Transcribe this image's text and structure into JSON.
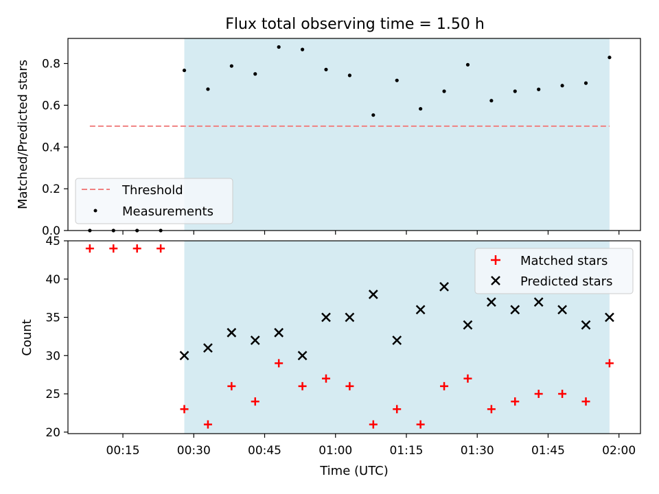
{
  "chart_data": [
    {
      "type": "scatter",
      "title": "Flux total observing time = 1.50 h",
      "xlabel": "",
      "ylabel": "Matched/Predicted stars",
      "ylim": [
        0,
        0.92
      ],
      "yticks": [
        "0.0",
        "0.2",
        "0.4",
        "0.6",
        "0.8"
      ],
      "x_axis_type": "time",
      "x_tick_labels_shown": false,
      "shaded_interval": {
        "start": "00:28",
        "end": "01:58",
        "color": "#add8e6"
      },
      "threshold": {
        "name": "Threshold",
        "value": 0.5,
        "x_start": "00:08",
        "x_end": "01:58",
        "color": "#f08080",
        "style": "dashed"
      },
      "series": [
        {
          "name": "Measurements",
          "color": "#000000",
          "marker": "dot",
          "x": [
            "00:08",
            "00:13",
            "00:18",
            "00:23",
            "00:28",
            "00:33",
            "00:38",
            "00:43",
            "00:48",
            "00:53",
            "00:58",
            "01:03",
            "01:08",
            "01:13",
            "01:18",
            "01:23",
            "01:28",
            "01:33",
            "01:38",
            "01:43",
            "01:48",
            "01:53",
            "01:58"
          ],
          "y": [
            0.0,
            0.0,
            0.0,
            0.0,
            0.767,
            0.677,
            0.788,
            0.75,
            0.879,
            0.867,
            0.771,
            0.743,
            0.553,
            0.719,
            0.583,
            0.667,
            0.794,
            0.622,
            0.667,
            0.676,
            0.694,
            0.706,
            0.829
          ]
        }
      ],
      "legend": {
        "position": "lower-left",
        "entries": [
          "Threshold",
          "Measurements"
        ]
      }
    },
    {
      "type": "scatter",
      "title": "",
      "xlabel": "Time (UTC)",
      "ylabel": "Count",
      "ylim": [
        19.8,
        45
      ],
      "yticks": [
        "20",
        "25",
        "30",
        "35",
        "40",
        "45"
      ],
      "x_axis_type": "time",
      "xticks": [
        "00:15",
        "00:30",
        "00:45",
        "01:00",
        "01:15",
        "01:30",
        "01:45",
        "02:00"
      ],
      "shaded_interval": {
        "start": "00:28",
        "end": "01:58",
        "color": "#add8e6"
      },
      "series": [
        {
          "name": "Matched stars",
          "color": "#ff0000",
          "marker": "plus",
          "x": [
            "00:08",
            "00:13",
            "00:18",
            "00:23",
            "00:28",
            "00:33",
            "00:38",
            "00:43",
            "00:48",
            "00:53",
            "00:58",
            "01:03",
            "01:08",
            "01:13",
            "01:18",
            "01:23",
            "01:28",
            "01:33",
            "01:38",
            "01:43",
            "01:48",
            "01:53",
            "01:58"
          ],
          "y": [
            44,
            44,
            44,
            44,
            23,
            21,
            26,
            24,
            29,
            26,
            27,
            26,
            21,
            23,
            21,
            26,
            27,
            23,
            24,
            25,
            25,
            24,
            29
          ]
        },
        {
          "name": "Predicted stars",
          "color": "#000000",
          "marker": "x",
          "x": [
            "00:28",
            "00:33",
            "00:38",
            "00:43",
            "00:48",
            "00:53",
            "00:58",
            "01:03",
            "01:08",
            "01:13",
            "01:18",
            "01:23",
            "01:28",
            "01:33",
            "01:38",
            "01:43",
            "01:48",
            "01:53",
            "01:58"
          ],
          "y": [
            30,
            31,
            33,
            32,
            33,
            30,
            35,
            35,
            38,
            32,
            36,
            39,
            34,
            37,
            36,
            37,
            36,
            34,
            35
          ]
        }
      ],
      "legend": {
        "position": "top-right",
        "entries": [
          "Matched stars",
          "Predicted stars"
        ]
      }
    }
  ]
}
